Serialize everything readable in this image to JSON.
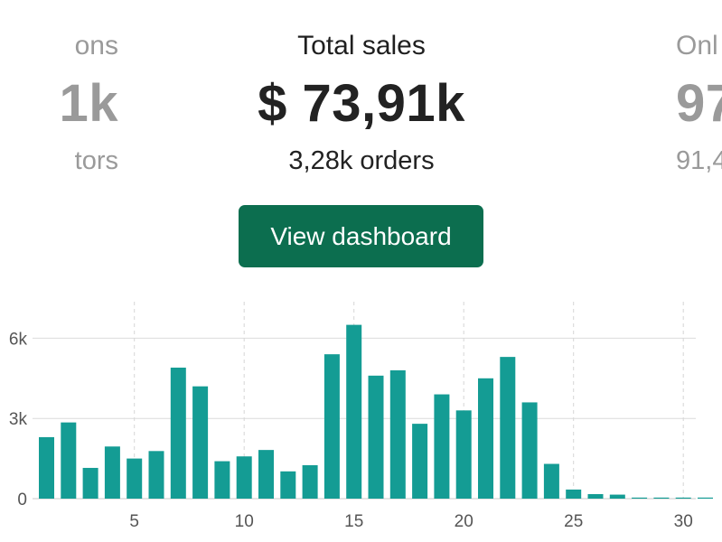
{
  "metrics": {
    "left": {
      "label": "ons",
      "value": "1k",
      "sub": "tors"
    },
    "center": {
      "label": "Total sales",
      "value": "$ 73,91k",
      "sub": "3,28k orders"
    },
    "right": {
      "label": "Onl",
      "value": "97",
      "sub": "91,4"
    }
  },
  "button": {
    "label": "View dashboard",
    "color": "#0c6e4f"
  },
  "chart_data": {
    "type": "bar",
    "bar_color": "#149c94",
    "x": [
      1,
      2,
      3,
      4,
      5,
      6,
      7,
      8,
      9,
      10,
      11,
      12,
      13,
      14,
      15,
      16,
      17,
      18,
      19,
      20,
      21,
      22,
      23,
      24,
      25,
      26,
      27,
      28,
      29,
      30,
      31
    ],
    "values": [
      2300,
      2850,
      1150,
      1950,
      1500,
      1780,
      4900,
      4200,
      1400,
      1580,
      1820,
      1020,
      1250,
      5400,
      6500,
      4600,
      4800,
      2800,
      3900,
      3300,
      4500,
      5300,
      3600,
      1300,
      340,
      170,
      150,
      40,
      40,
      40,
      40
    ],
    "x_ticks": [
      5,
      10,
      15,
      20,
      25,
      30
    ],
    "y_ticks": [
      {
        "value": 0,
        "label": "0"
      },
      {
        "value": 3000,
        "label": "3k"
      },
      {
        "value": 6000,
        "label": "6k"
      }
    ],
    "ylim": [
      0,
      7200
    ],
    "title": "",
    "xlabel": "",
    "ylabel": "",
    "grid": true
  }
}
